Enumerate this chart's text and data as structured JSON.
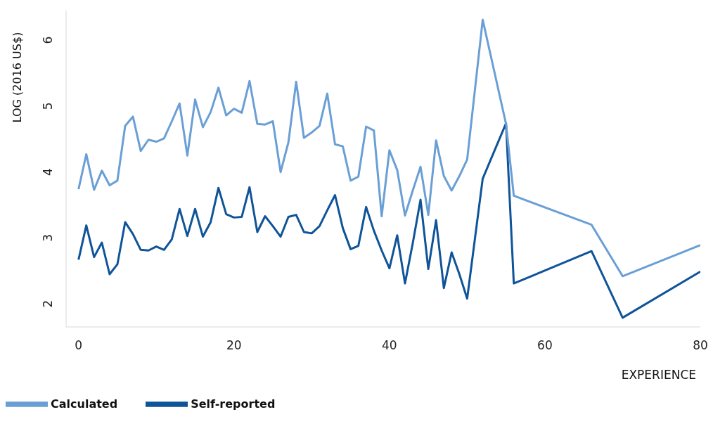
{
  "chart_data": {
    "type": "line",
    "xlabel": "EXPERIENCE",
    "ylabel": "LOG  (2016 US$)",
    "x": [
      0,
      1,
      2,
      3,
      4,
      5,
      6,
      7,
      8,
      9,
      10,
      11,
      12,
      13,
      14,
      15,
      16,
      17,
      18,
      19,
      20,
      21,
      22,
      23,
      24,
      25,
      26,
      27,
      28,
      29,
      30,
      31,
      32,
      33,
      34,
      35,
      36,
      37,
      38,
      39,
      40,
      41,
      42,
      43,
      44,
      45,
      46,
      47,
      48,
      49,
      50,
      52,
      55,
      56,
      66,
      70,
      80
    ],
    "series": [
      {
        "name": "Self-reported",
        "color": "#0f5499",
        "values": [
          2.67,
          3.19,
          2.71,
          2.93,
          2.45,
          2.6,
          3.24,
          3.06,
          2.82,
          2.81,
          2.87,
          2.82,
          2.98,
          3.44,
          3.03,
          3.44,
          3.02,
          3.24,
          3.76,
          3.36,
          3.31,
          3.32,
          3.77,
          3.09,
          3.33,
          3.18,
          3.02,
          3.32,
          3.35,
          3.09,
          3.07,
          3.18,
          3.42,
          3.65,
          3.15,
          2.83,
          2.88,
          3.47,
          3.11,
          2.81,
          2.54,
          3.04,
          2.31,
          2.92,
          3.58,
          2.53,
          3.27,
          2.24,
          2.78,
          2.45,
          2.08,
          3.9,
          4.74,
          2.31,
          2.8,
          1.79,
          2.49
        ]
      },
      {
        "name": "Calculated",
        "color": "#6a9fd6",
        "values": [
          3.74,
          4.27,
          3.73,
          4.02,
          3.8,
          3.87,
          4.7,
          4.84,
          4.32,
          4.49,
          4.46,
          4.51,
          4.77,
          5.04,
          4.25,
          5.1,
          4.68,
          4.91,
          5.28,
          4.86,
          4.96,
          4.9,
          5.38,
          4.73,
          4.72,
          4.77,
          4.0,
          4.45,
          5.37,
          4.52,
          4.6,
          4.7,
          5.19,
          4.42,
          4.39,
          3.87,
          3.93,
          4.69,
          4.63,
          3.33,
          4.33,
          4.03,
          3.34,
          3.72,
          4.08,
          3.35,
          4.48,
          3.94,
          3.72,
          3.94,
          4.19,
          6.31,
          4.73,
          3.64,
          3.2,
          2.42,
          2.89
        ]
      }
    ],
    "xlim": [
      -1.6,
      80
    ],
    "xticks": [
      0,
      20,
      40,
      60,
      80
    ],
    "ylim": [
      1.65,
      6.45
    ],
    "yticks": [
      2,
      3,
      4,
      5,
      6
    ],
    "grid": false,
    "legend": "bottom left"
  }
}
